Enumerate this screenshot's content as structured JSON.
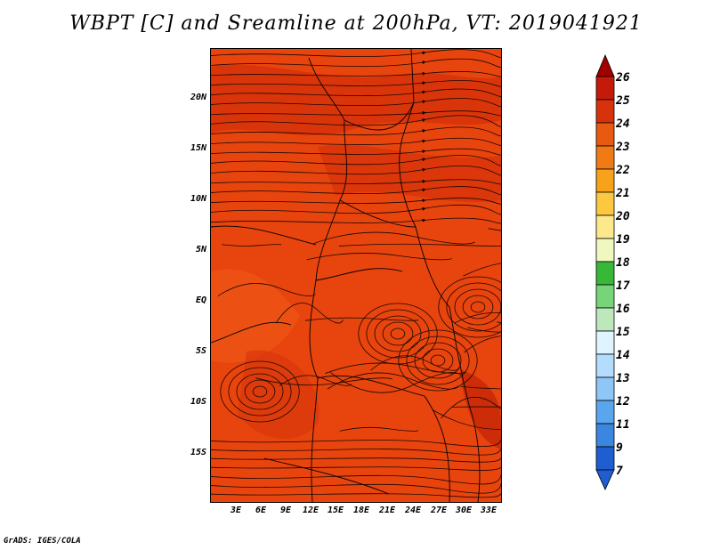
{
  "title": "WBPT [C] and Sreamline at 200hPa, VT: 2019041921",
  "credit": "GrADS: IGES/COLA",
  "map": {
    "lat_labels": [
      "20N",
      "15N",
      "10N",
      "5N",
      "EQ",
      "5S",
      "10S",
      "15S"
    ],
    "lon_labels": [
      "3E",
      "6E",
      "9E",
      "12E",
      "15E",
      "18E",
      "21E",
      "24E",
      "27E",
      "30E",
      "33E"
    ],
    "fill_color": "#e8440e",
    "dark_fill_color": "#cc2a08"
  },
  "colorbar": {
    "labels": [
      "26",
      "25",
      "24",
      "23",
      "22",
      "21",
      "20",
      "19",
      "18",
      "17",
      "16",
      "15",
      "14",
      "13",
      "12",
      "11",
      "9",
      "7"
    ],
    "colors": [
      "#a00000",
      "#c41a0a",
      "#d8320c",
      "#e85a10",
      "#f07a16",
      "#f6a21a",
      "#fcc840",
      "#fde88c",
      "#f0f8c0",
      "#38b838",
      "#78d478",
      "#bce8bc",
      "#e0f4ff",
      "#b4dcfc",
      "#8ec6f6",
      "#5aa6ee",
      "#3a86e0",
      "#1e5ed0"
    ]
  }
}
